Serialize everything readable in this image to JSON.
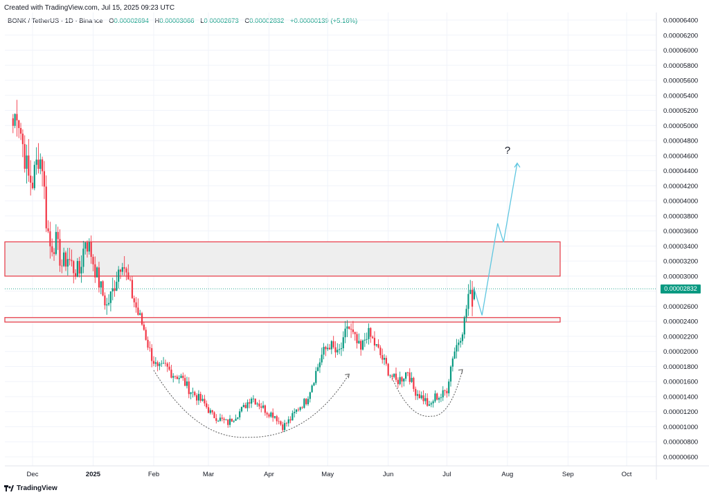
{
  "caption": "Created with TradingView.com, Jul 15, 2025 09:23 UTC",
  "legend": {
    "symbol": "BONK / TetherUS · 1D · Binance",
    "open_label": "O",
    "open": "0.00002694",
    "high_label": "H",
    "high": "0.00003066",
    "low_label": "L",
    "low": "0.00002673",
    "close_label": "C",
    "close": "0.00002832",
    "change": "+0.00000139 (+5.16%)"
  },
  "last_price_label": "0.00002832",
  "annotation": "?",
  "footer": {
    "logo_icon": "tradingview-logo-icon",
    "brand": "TradingView"
  },
  "colors": {
    "up": "#089981",
    "down": "#f23645",
    "zone_stroke": "#e8434f",
    "zone_fill": "#eeeeee",
    "projection": "#5ec6e0",
    "arc": "#555555"
  },
  "chart_data": {
    "type": "candlestick",
    "title": "BONK / TetherUS · 1D · Binance",
    "price_axis_ticks": [
      "0.00006400",
      "0.00006200",
      "0.00006000",
      "0.00005800",
      "0.00005600",
      "0.00005400",
      "0.00005200",
      "0.00005000",
      "0.00004800",
      "0.00004600",
      "0.00004400",
      "0.00004200",
      "0.00004000",
      "0.00003800",
      "0.00003600",
      "0.00003400",
      "0.00003200",
      "0.00003000",
      "0.00002800",
      "0.00002600",
      "0.00002400",
      "0.00002200",
      "0.00002000",
      "0.00001800",
      "0.00001600",
      "0.00001400",
      "0.00001200",
      "0.00001000",
      "0.00000800",
      "0.00000600"
    ],
    "time_axis_ticks": [
      "Dec",
      "2025",
      "Feb",
      "Mar",
      "Apr",
      "May",
      "Jun",
      "Jul",
      "Aug",
      "Sep",
      "Oct"
    ],
    "ylim": [
      5e-06,
      6.55e-05
    ],
    "last_price": 2.832e-05,
    "resistance_zone": [
      3e-05,
      3.455e-05
    ],
    "support_zone": [
      2.39e-05,
      2.45e-05
    ],
    "close_path": [
      [
        "2024-11-21",
        5e-05
      ],
      [
        "2024-11-23",
        5.25e-05
      ],
      [
        "2024-11-26",
        4.75e-05
      ],
      [
        "2024-11-29",
        4.3e-05
      ],
      [
        "2024-12-01",
        4.25e-05
      ],
      [
        "2024-12-04",
        4.6e-05
      ],
      [
        "2024-12-06",
        4.5e-05
      ],
      [
        "2024-12-08",
        3.75e-05
      ],
      [
        "2024-12-10",
        3.4e-05
      ],
      [
        "2024-12-13",
        3.45e-05
      ],
      [
        "2024-12-16",
        3.15e-05
      ],
      [
        "2024-12-19",
        3.25e-05
      ],
      [
        "2024-12-22",
        3.1e-05
      ],
      [
        "2024-12-25",
        3.05e-05
      ],
      [
        "2024-12-28",
        3.5e-05
      ],
      [
        "2024-12-31",
        3.3e-05
      ],
      [
        "2025-01-03",
        3e-05
      ],
      [
        "2025-01-06",
        2.75e-05
      ],
      [
        "2025-01-08",
        2.6e-05
      ],
      [
        "2025-01-11",
        2.8e-05
      ],
      [
        "2025-01-14",
        3.1e-05
      ],
      [
        "2025-01-16",
        3.25e-05
      ],
      [
        "2025-01-18",
        3e-05
      ],
      [
        "2025-01-21",
        2.75e-05
      ],
      [
        "2025-01-24",
        2.5e-05
      ],
      [
        "2025-01-27",
        2.3e-05
      ],
      [
        "2025-01-30",
        2e-05
      ],
      [
        "2025-02-03",
        1.75e-05
      ],
      [
        "2025-02-07",
        1.8e-05
      ],
      [
        "2025-02-11",
        1.7e-05
      ],
      [
        "2025-02-15",
        1.65e-05
      ],
      [
        "2025-02-19",
        1.5e-05
      ],
      [
        "2025-02-23",
        1.4e-05
      ],
      [
        "2025-02-27",
        1.3e-05
      ],
      [
        "2025-03-03",
        1.15e-05
      ],
      [
        "2025-03-07",
        1.1e-05
      ],
      [
        "2025-03-11",
        1.05e-05
      ],
      [
        "2025-03-15",
        1.15e-05
      ],
      [
        "2025-03-19",
        1.25e-05
      ],
      [
        "2025-03-23",
        1.4e-05
      ],
      [
        "2025-03-27",
        1.3e-05
      ],
      [
        "2025-03-31",
        1.2e-05
      ],
      [
        "2025-04-04",
        1.15e-05
      ],
      [
        "2025-04-08",
        1e-05
      ],
      [
        "2025-04-12",
        1.1e-05
      ],
      [
        "2025-04-16",
        1.25e-05
      ],
      [
        "2025-04-20",
        1.35e-05
      ],
      [
        "2025-04-24",
        1.65e-05
      ],
      [
        "2025-04-28",
        1.95e-05
      ],
      [
        "2025-05-02",
        2.1e-05
      ],
      [
        "2025-05-06",
        1.95e-05
      ],
      [
        "2025-05-09",
        2.1e-05
      ],
      [
        "2025-05-11",
        2.35e-05
      ],
      [
        "2025-05-13",
        2.25e-05
      ],
      [
        "2025-05-15",
        2.15e-05
      ],
      [
        "2025-05-18",
        2e-05
      ],
      [
        "2025-05-21",
        2.25e-05
      ],
      [
        "2025-05-24",
        2.15e-05
      ],
      [
        "2025-05-27",
        2e-05
      ],
      [
        "2025-05-30",
        1.85e-05
      ],
      [
        "2025-06-02",
        1.7e-05
      ],
      [
        "2025-06-05",
        1.6e-05
      ],
      [
        "2025-06-08",
        1.65e-05
      ],
      [
        "2025-06-11",
        1.75e-05
      ],
      [
        "2025-06-14",
        1.5e-05
      ],
      [
        "2025-06-17",
        1.42e-05
      ],
      [
        "2025-06-20",
        1.35e-05
      ],
      [
        "2025-06-22",
        1.25e-05
      ],
      [
        "2025-06-25",
        1.4e-05
      ],
      [
        "2025-06-28",
        1.4e-05
      ],
      [
        "2025-07-01",
        1.5e-05
      ],
      [
        "2025-07-04",
        1.95e-05
      ],
      [
        "2025-07-07",
        2.15e-05
      ],
      [
        "2025-07-10",
        2.4e-05
      ],
      [
        "2025-07-12",
        2.75e-05
      ],
      [
        "2025-07-14",
        2.69e-05
      ],
      [
        "2025-07-15",
        2.832e-05
      ]
    ],
    "projection": [
      [
        "2025-07-15",
        2.83e-05
      ],
      [
        "2025-07-19",
        2.48e-05
      ],
      [
        "2025-07-27",
        3.7e-05
      ],
      [
        "2025-07-30",
        3.45e-05
      ],
      [
        "2025-08-06",
        4.5e-05
      ]
    ],
    "arcs": [
      {
        "from": [
          "2025-02-01",
          1.75e-05
        ],
        "bottom": [
          "2025-03-21",
          8.6e-06
        ],
        "to": [
          "2025-05-12",
          1.7e-05
        ]
      },
      {
        "from": [
          "2025-06-03",
          1.65e-05
        ],
        "bottom": [
          "2025-06-23",
          1.14e-05
        ],
        "to": [
          "2025-07-09",
          1.76e-05
        ]
      }
    ]
  }
}
